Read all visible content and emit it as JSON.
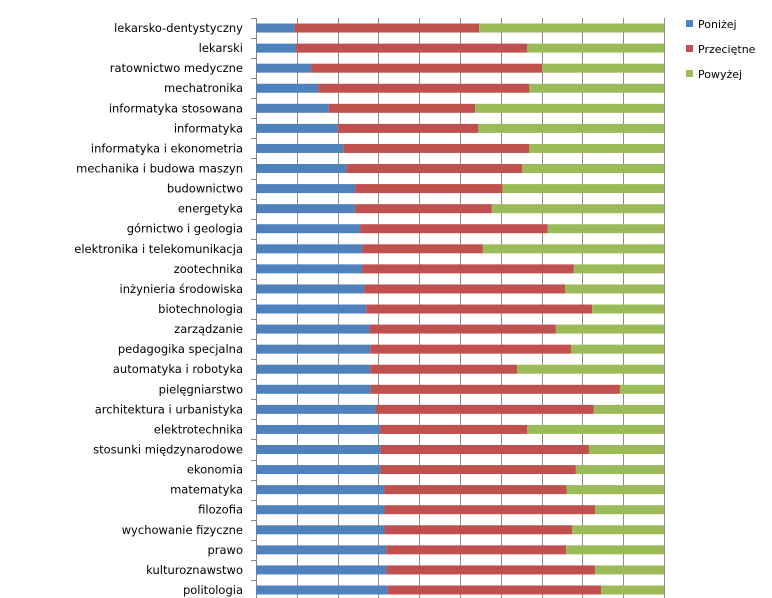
{
  "chart_data": {
    "type": "bar",
    "orientation": "horizontal",
    "stacked": "percent",
    "xlim": [
      0,
      100
    ],
    "grid": true,
    "legend_position": "right",
    "categories": [
      "lekarsko-dentystyczny",
      "lekarski",
      "ratownictwo medyczne",
      "mechatronika",
      "informatyka stosowana",
      "informatyka",
      "informatyka i ekonometria",
      "mechanika i budowa maszyn",
      "budownictwo",
      "energetyka",
      "górnictwo i geologia",
      "elektronika i telekomunikacja",
      "zootechnika",
      "inżynieria środowiska",
      "biotechnologia",
      "zarządzanie",
      "pedagogika specjalna",
      "automatyka  i robotyka",
      "pielęgniarstwo",
      "architektura i urbanistyka",
      "elektrotechnika",
      "stosunki międzynarodowe",
      "ekonomia",
      "matematyka",
      "filozofia",
      "wychowanie fizyczne",
      "prawo",
      "kulturoznawstwo",
      "politologia"
    ],
    "series": [
      {
        "name": "Poniżej",
        "color": "#4F81BD",
        "values": [
          9.4,
          9.7,
          13.5,
          15.3,
          17.8,
          20.0,
          21.4,
          22.2,
          24.3,
          24.3,
          25.5,
          26.0,
          26.0,
          26.5,
          27.0,
          27.8,
          28.0,
          28.0,
          28.1,
          29.4,
          30.4,
          30.5,
          30.5,
          31.4,
          31.5,
          31.5,
          31.9,
          32.0,
          32.2
        ]
      },
      {
        "name": "Przeciętne",
        "color": "#C0504D",
        "values": [
          45.3,
          56.8,
          56.6,
          51.7,
          35.9,
          34.5,
          45.6,
          43.0,
          36.1,
          33.5,
          46.0,
          29.6,
          51.9,
          49.3,
          55.4,
          45.7,
          49.2,
          36.0,
          61.1,
          53.4,
          36.1,
          51.1,
          47.9,
          44.7,
          51.6,
          46.0,
          44.1,
          51.1,
          52.4
        ]
      },
      {
        "name": "Powyżej",
        "color": "#9BBB59",
        "values": [
          45.3,
          33.5,
          29.9,
          33.0,
          46.3,
          45.5,
          33.0,
          34.8,
          39.6,
          42.2,
          28.5,
          44.4,
          22.1,
          24.2,
          17.6,
          26.5,
          22.8,
          36.0,
          10.8,
          17.2,
          33.5,
          18.4,
          21.6,
          23.9,
          16.9,
          22.5,
          24.0,
          16.9,
          15.4
        ]
      }
    ]
  }
}
